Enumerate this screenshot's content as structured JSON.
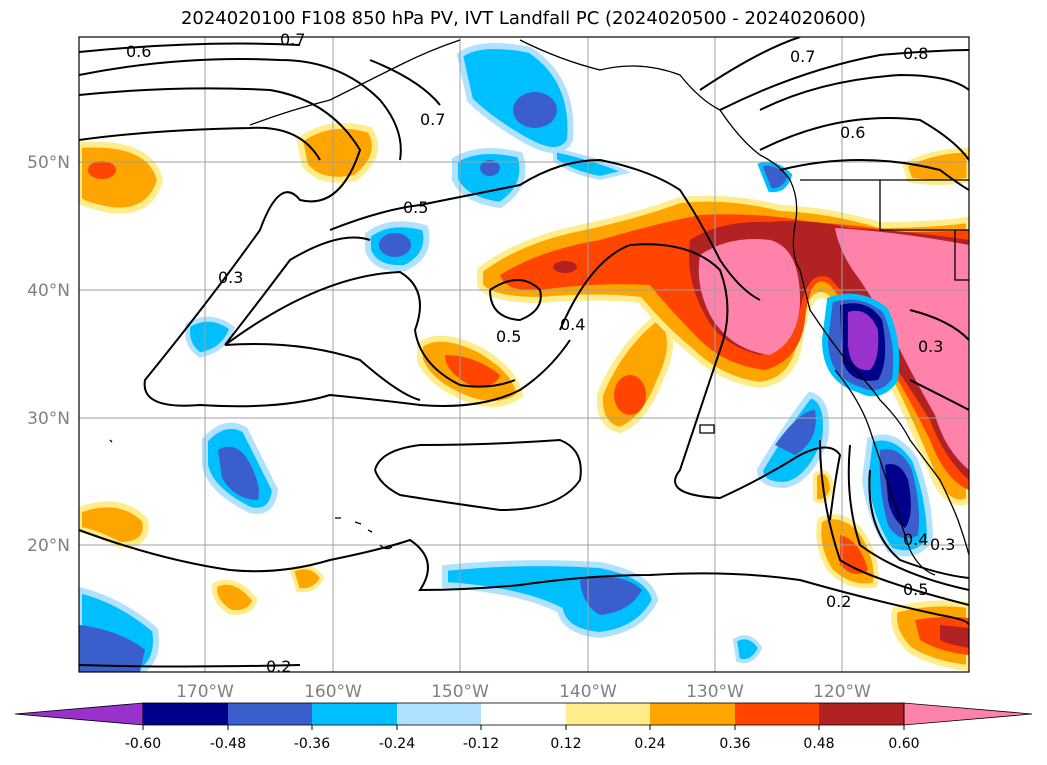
{
  "title": "2024020100 F108 850 hPa PV, IVT Landfall PC (2024020500 - 2024020600)",
  "lat_labels": [
    "50°N",
    "40°N",
    "30°N",
    "20°N"
  ],
  "lon_labels": [
    "170°W",
    "160°W",
    "150°W",
    "140°W",
    "130°W",
    "120°W"
  ],
  "contour_labels": [
    "0.6",
    "0.7",
    "0.7",
    "0.7",
    "0.8",
    "0.6",
    "0.5",
    "0.3",
    "0.5",
    "0.4",
    "0.3",
    "0.4",
    "0.3",
    "0.5",
    "0.2",
    "0.2"
  ],
  "colorbar": {
    "colors": [
      "#9932cc",
      "#00008b",
      "#3a5fcd",
      "#00bfff",
      "#b0e2ff",
      "#ffffff",
      "#ffec8b",
      "#ffa500",
      "#ff4500",
      "#b22222",
      "#ff82ab"
    ],
    "tick_labels": [
      "-0.60",
      "-0.48",
      "-0.36",
      "-0.24",
      "-0.12",
      "0.12",
      "0.24",
      "0.36",
      "0.48",
      "0.60"
    ]
  }
}
